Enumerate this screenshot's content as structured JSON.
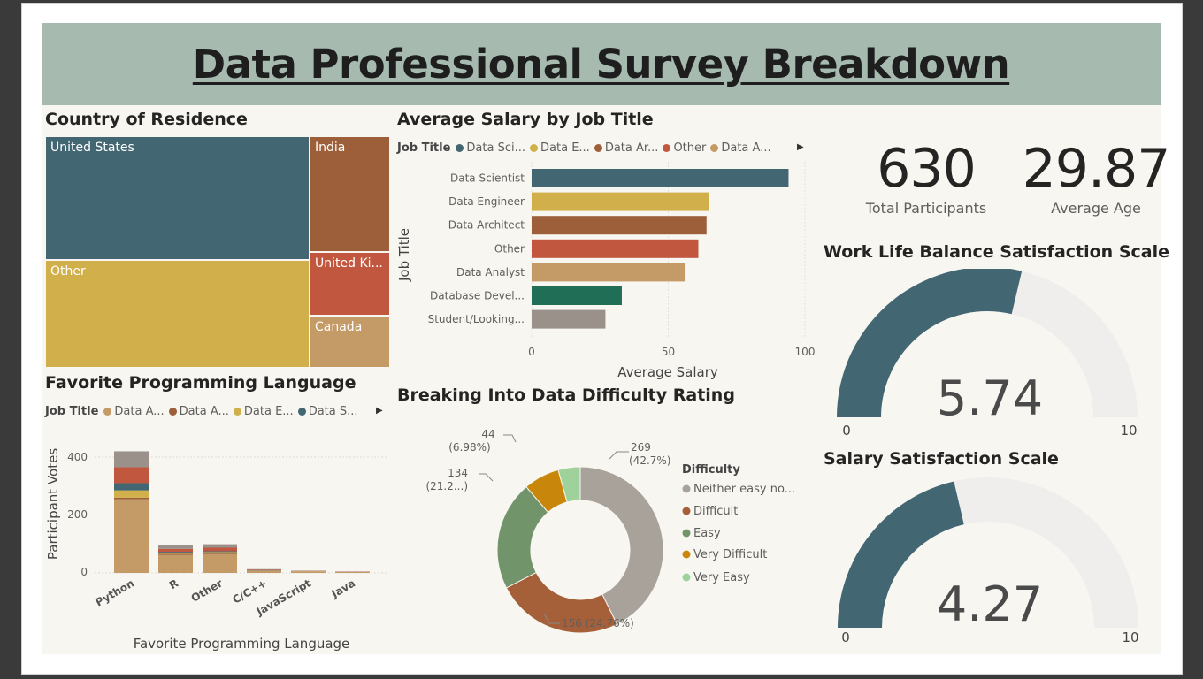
{
  "title": "Data Professional Survey Breakdown",
  "country": {
    "title": "Country of Residence",
    "cells": [
      {
        "label": "United States",
        "color": "#436673"
      },
      {
        "label": "Other",
        "color": "#d1b04b"
      },
      {
        "label": "India",
        "color": "#9c5f3a"
      },
      {
        "label": "United Ki...",
        "color": "#c1573f"
      },
      {
        "label": "Canada",
        "color": "#c49a67"
      }
    ]
  },
  "salary": {
    "title": "Average Salary by Job Title",
    "legend_title": "Job Title",
    "legend": [
      {
        "label": "Data Sci...",
        "color": "#436673"
      },
      {
        "label": "Data E...",
        "color": "#d1b04b"
      },
      {
        "label": "Data Ar...",
        "color": "#9c5f3a"
      },
      {
        "label": "Other",
        "color": "#c1573f"
      },
      {
        "label": "Data A...",
        "color": "#c49a67"
      }
    ],
    "xlabel": "Average Salary",
    "ylabel": "Job Title",
    "ticks": [
      "0",
      "50",
      "100"
    ]
  },
  "kpis": {
    "participants_value": "630",
    "participants_label": "Total Participants",
    "age_value": "29.87",
    "age_label": "Average Age"
  },
  "worklife": {
    "title": "Work Life Balance Satisfaction Scale",
    "value_text": "5.74",
    "min": "0",
    "max": "10"
  },
  "salarysat": {
    "title": "Salary Satisfaction Scale",
    "value_text": "4.27",
    "min": "0",
    "max": "10"
  },
  "language": {
    "title": "Favorite Programming Language",
    "legend_title": "Job Title",
    "legend": [
      {
        "label": "Data A...",
        "color": "#c49a67"
      },
      {
        "label": "Data A...",
        "color": "#9c5f3a"
      },
      {
        "label": "Data E...",
        "color": "#d1b04b"
      },
      {
        "label": "Data S...",
        "color": "#436673"
      }
    ],
    "xlabel": "Favorite Programming Language",
    "ylabel": "Participant Votes",
    "yticks": [
      "400",
      "200",
      "0"
    ]
  },
  "difficulty": {
    "title": "Breaking Into Data Difficulty Rating",
    "legend_title": "Difficulty",
    "legend": [
      {
        "label": "Neither easy no...",
        "color": "#a9a29b"
      },
      {
        "label": "Difficult",
        "color": "#a5603a"
      },
      {
        "label": "Easy",
        "color": "#72946b"
      },
      {
        "label": "Very Difficult",
        "color": "#c8860b"
      },
      {
        "label": "Very Easy",
        "color": "#9ed29a"
      }
    ],
    "labels": {
      "neither_count": "269",
      "neither_pct": "(42.7%)",
      "difficult": "156 (24.76%)",
      "easy_count": "134",
      "easy_pct": "(21.2...)",
      "vdiff_count": "44",
      "vdiff_pct": "(6.98%)"
    }
  },
  "chart_data": [
    {
      "type": "treemap",
      "title": "Country of Residence",
      "categories": [
        "United States",
        "Other",
        "India",
        "United Ki...",
        "Canada"
      ],
      "values": [
        261,
        230,
        64,
        32,
        43
      ]
    },
    {
      "type": "bar",
      "orientation": "horizontal",
      "title": "Average Salary by Job Title",
      "categories": [
        "Data Scientist",
        "Data Engineer",
        "Data Architect",
        "Other",
        "Data Analyst",
        "Database Devel...",
        "Student/Looking..."
      ],
      "values": [
        94,
        65,
        64,
        61,
        56,
        33,
        27
      ],
      "colors": [
        "#436673",
        "#d1b04b",
        "#9c5f3a",
        "#c1573f",
        "#c49a67",
        "#1f6e55",
        "#9a918a"
      ],
      "xlabel": "Average Salary",
      "ylabel": "Job Title",
      "xlim": [
        0,
        100
      ]
    },
    {
      "type": "bar",
      "stacked": true,
      "title": "Favorite Programming Language",
      "categories": [
        "Python",
        "R",
        "Other",
        "C/C++",
        "JavaScript",
        "Java"
      ],
      "series": [
        {
          "name": "Data A...",
          "color": "#c49a67",
          "values": [
            255,
            62,
            65,
            6,
            4,
            3
          ]
        },
        {
          "name": "Data A...",
          "color": "#9c5f3a",
          "values": [
            5,
            4,
            3,
            1,
            1,
            0
          ]
        },
        {
          "name": "Data E...",
          "color": "#d1b04b",
          "values": [
            25,
            3,
            4,
            1,
            1,
            0
          ]
        },
        {
          "name": "Data S...",
          "color": "#436673",
          "values": [
            25,
            4,
            3,
            1,
            0,
            0
          ]
        },
        {
          "name": "",
          "color": "#c1573f",
          "values": [
            55,
            10,
            12,
            2,
            1,
            1
          ]
        },
        {
          "name": "",
          "color": "#9a918a",
          "values": [
            55,
            13,
            12,
            2,
            1,
            1
          ]
        }
      ],
      "xlabel": "Favorite Programming Language",
      "ylabel": "Participant Votes",
      "ylim": [
        0,
        430
      ]
    },
    {
      "type": "pie",
      "donut": true,
      "title": "Breaking Into Data Difficulty Rating",
      "categories": [
        "Neither easy no...",
        "Difficult",
        "Easy",
        "Very Difficult",
        "Very Easy"
      ],
      "values": [
        269,
        156,
        134,
        44,
        27
      ],
      "colors": [
        "#a9a29b",
        "#a5603a",
        "#72946b",
        "#c8860b",
        "#9ed29a"
      ]
    },
    {
      "type": "gauge",
      "title": "Work Life Balance Satisfaction Scale",
      "value": 5.74,
      "min": 0,
      "max": 10
    },
    {
      "type": "gauge",
      "title": "Salary Satisfaction Scale",
      "value": 4.27,
      "min": 0,
      "max": 10
    }
  ]
}
